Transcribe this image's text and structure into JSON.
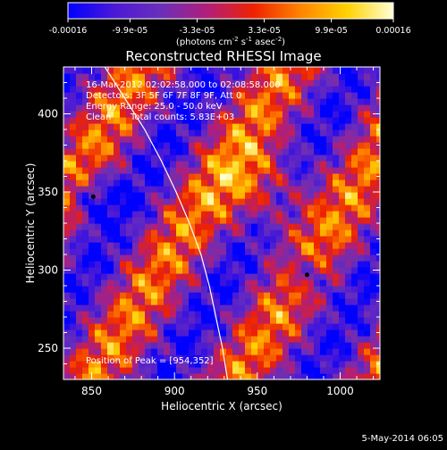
{
  "colorbar": {
    "tick_labels": [
      "-0.00016",
      "-9.9e-05",
      "-3.3e-05",
      "3.3e-05",
      "9.9e-05",
      "0.00016"
    ],
    "tick_values": [
      -0.00016,
      -9.9e-05,
      -3.3e-05,
      3.3e-05,
      9.9e-05,
      0.00016
    ],
    "range": [
      -0.00016,
      0.00016
    ],
    "units_text": "(photons cm",
    "units_exp1": "-2",
    "units_mid": " s",
    "units_exp2": "-1",
    "units_mid2": " asec",
    "units_exp3": "-2",
    "units_close": ")",
    "colors": [
      "#0000ff",
      "#4b19d6",
      "#6a2fb9",
      "#b21e79",
      "#ee2200",
      "#ff8400",
      "#ffd200",
      "#ffffd6"
    ]
  },
  "chart_data": {
    "type": "heatmap",
    "title": "Reconstructed RHESSI Image",
    "xlabel": "Heliocentric X (arcsec)",
    "ylabel": "Heliocentric Y (arcsec)",
    "xlim": [
      833,
      1024
    ],
    "ylim": [
      230,
      430
    ],
    "x_ticks": [
      850,
      900,
      950,
      1000
    ],
    "y_ticks": [
      250,
      300,
      350,
      400
    ],
    "limb_curve": [
      [
        858,
        430
      ],
      [
        870,
        410
      ],
      [
        882,
        390
      ],
      [
        892,
        370
      ],
      [
        901,
        350
      ],
      [
        909,
        330
      ],
      [
        916,
        310
      ],
      [
        921,
        290
      ],
      [
        925,
        270
      ],
      [
        929,
        250
      ],
      [
        932,
        230
      ]
    ],
    "peak_marker": [
      954,
      352
    ],
    "minima_markers": [
      [
        851,
        347
      ],
      [
        980,
        297
      ]
    ],
    "annotations": [
      "16-Mar-2012 02:02:58.000 to 02:08:58.000",
      "Detectors: 3F 5F 6F 7F 8F 9F, Att 0",
      "Energy Range: 25.0 - 50.0 keV",
      "Clean",
      "Total counts: 5.83E+03",
      "Position of Peak = [954,352]"
    ]
  },
  "footer": {
    "date": "5-May-2014 06:05"
  }
}
